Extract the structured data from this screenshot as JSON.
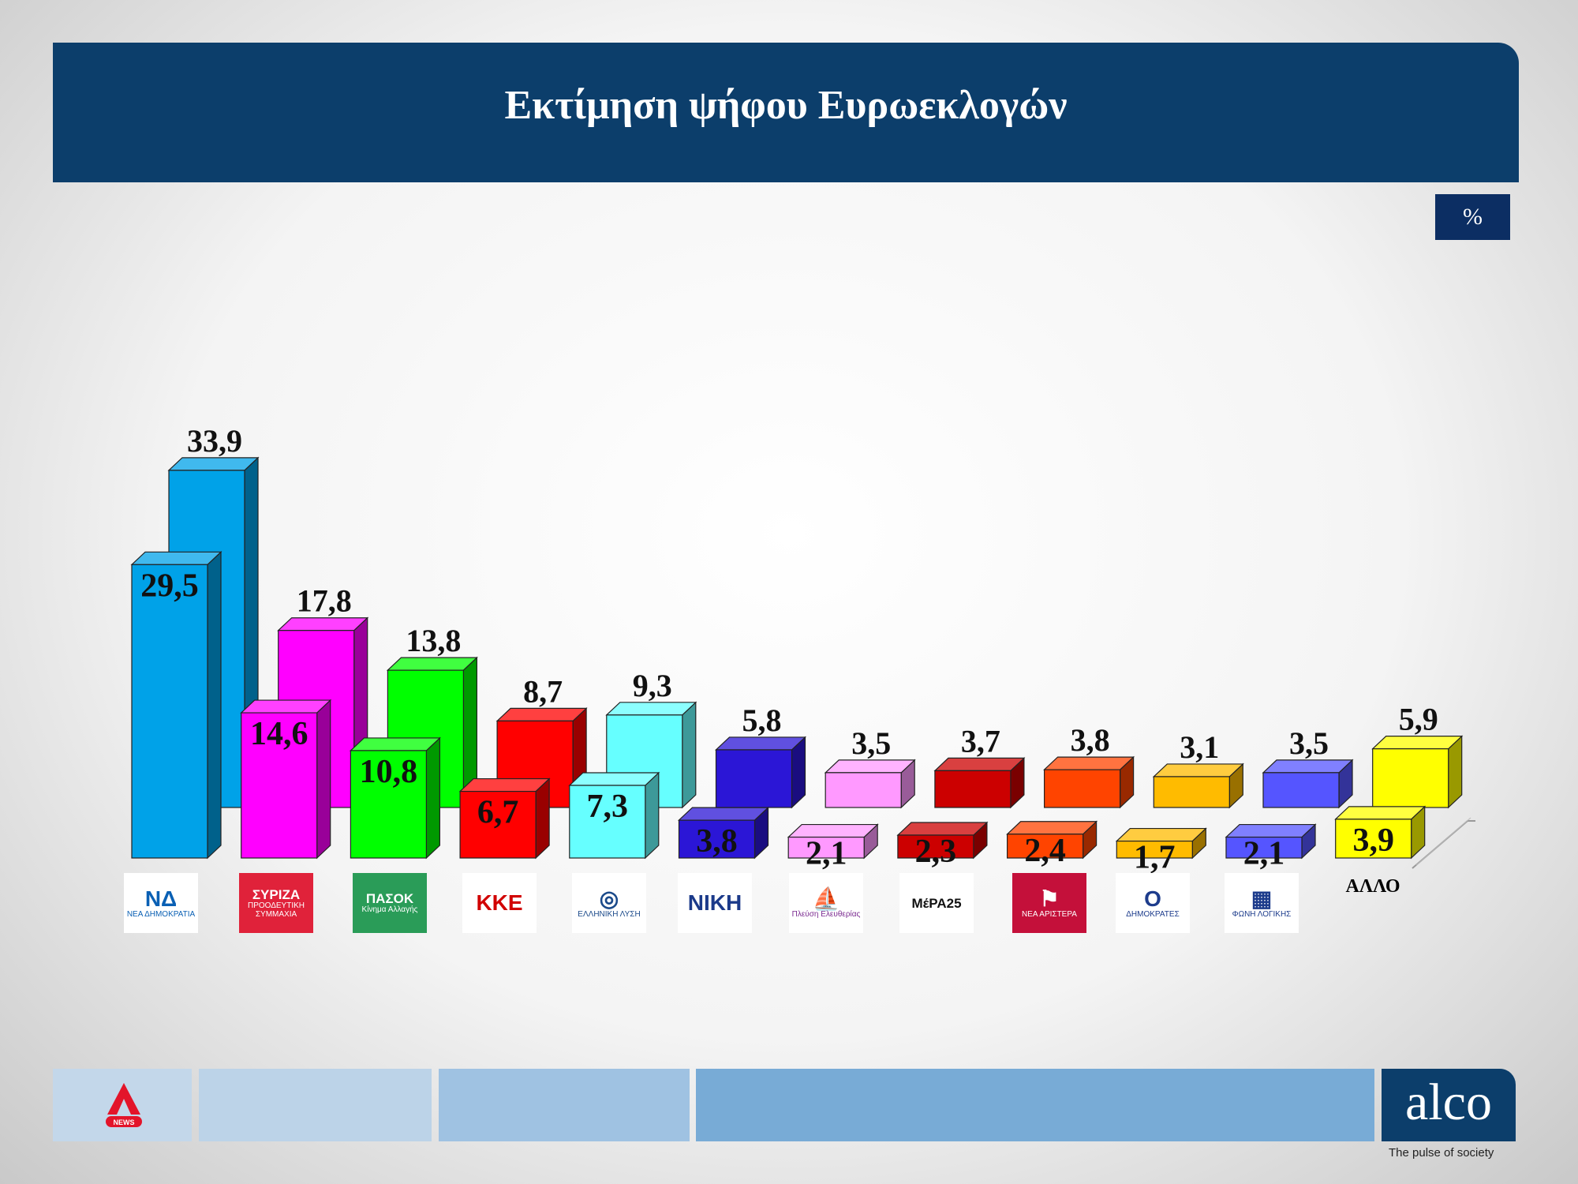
{
  "title": "Εκτίμηση ψήφου Ευρωεκλογών",
  "unit_label": "%",
  "chart_data": {
    "type": "bar",
    "title": "Εκτίμηση ψήφου Ευρωεκλογών",
    "unit": "%",
    "categories": [
      "ΝΕΑ ΔΗΜΟΚΡΑΤΙΑ",
      "ΣΥΡΙΖΑ",
      "ΠΑΣΟΚ",
      "ΚΚΕ",
      "ΕΛΛΗΝΙΚΗ ΛΥΣΗ",
      "ΝΙΚΗ",
      "Πλεύση Ελευθερίας",
      "ΜέΡΑ25",
      "ΝΕΑ ΑΡΙΣΤΕΡΑ",
      "ΔΗΜΟΚΡΑΤΕΣ",
      "ΦΩΝΗ ΛΟΓΙΚΗΣ",
      "ΑΛΛΟ"
    ],
    "series": [
      {
        "values": [
          29.5,
          14.6,
          10.8,
          6.7,
          7.3,
          3.8,
          2.1,
          2.3,
          2.4,
          1.7,
          2.1,
          3.9
        ],
        "labels": [
          "29,5",
          "14,6",
          "10,8",
          "6,7",
          "7,3",
          "3,8",
          "2,1",
          "2,3",
          "2,4",
          "1,7",
          "2,1",
          "3,9"
        ]
      },
      {
        "values": [
          33.9,
          17.8,
          13.8,
          8.7,
          9.3,
          5.8,
          3.5,
          3.7,
          3.8,
          3.1,
          3.5,
          5.9
        ],
        "labels": [
          "33,9",
          "17,8",
          "13,8",
          "8,7",
          "9,3",
          "5,8",
          "3,5",
          "3,7",
          "3,8",
          "3,1",
          "3,5",
          "5,9"
        ]
      }
    ],
    "colors": [
      "#00a2e8",
      "#ff00ff",
      "#00ff00",
      "#ff0000",
      "#66ffff",
      "#2b16d6",
      "#ff99ff",
      "#cc0000",
      "#ff4400",
      "#ffbb00",
      "#5555ff",
      "#ffff00"
    ],
    "grid": false,
    "legend": "none"
  },
  "logos": [
    {
      "name": "nd",
      "symbol": "ΝΔ",
      "label": "ΝΕΑ ΔΗΜΟΚΡΑΤΙΑ",
      "bg": "#ffffff",
      "color": "#0a60b4"
    },
    {
      "name": "syriza",
      "symbol": "ΣΥΡΙΖΑ",
      "label": "ΠΡΟΟΔΕΥΤΙΚΗ ΣΥΜΜΑΧΙΑ",
      "bg": "#e0223a",
      "color": "#ffffff"
    },
    {
      "name": "pasok",
      "symbol": "ΠΑΣΟΚ",
      "label": "Κίνημα Αλλαγής",
      "bg": "#2a9c58",
      "color": "#ffffff"
    },
    {
      "name": "kke",
      "symbol": "ΚΚΕ",
      "label": "",
      "bg": "#ffffff",
      "color": "#d10000"
    },
    {
      "name": "elliniki-lysi",
      "symbol": "◎",
      "label": "ΕΛΛΗΝΙΚΗ ΛΥΣΗ",
      "bg": "#ffffff",
      "color": "#1b4a8a"
    },
    {
      "name": "niki",
      "symbol": "ΝΙΚΗ",
      "label": "",
      "bg": "#ffffff",
      "color": "#1b3a8a"
    },
    {
      "name": "plefsi",
      "symbol": "⛵",
      "label": "Πλεύση Ελευθερίας",
      "bg": "#ffffff",
      "color": "#7a2a90"
    },
    {
      "name": "mera25",
      "symbol": "ΜέΡΑ25",
      "label": "",
      "bg": "#ffffff",
      "color": "#111111"
    },
    {
      "name": "nea-aristera",
      "symbol": "⚑",
      "label": "ΝΕΑ ΑΡΙΣΤΕΡΑ",
      "bg": "#c4103a",
      "color": "#ffffff"
    },
    {
      "name": "dimokrates",
      "symbol": "O",
      "label": "ΔΗΜΟΚΡΑΤΕΣ",
      "bg": "#ffffff",
      "color": "#1d3c8c"
    },
    {
      "name": "foni-logikis",
      "symbol": "▦",
      "label": "ΦΩΝΗ ΛΟΓΙΚΗΣ",
      "bg": "#ffffff",
      "color": "#1d3c8c"
    }
  ],
  "other_label": "ΑΛΛΟ",
  "footer": {
    "brand": "alco",
    "tagline": "The pulse of society",
    "news_label": "NEWS"
  }
}
